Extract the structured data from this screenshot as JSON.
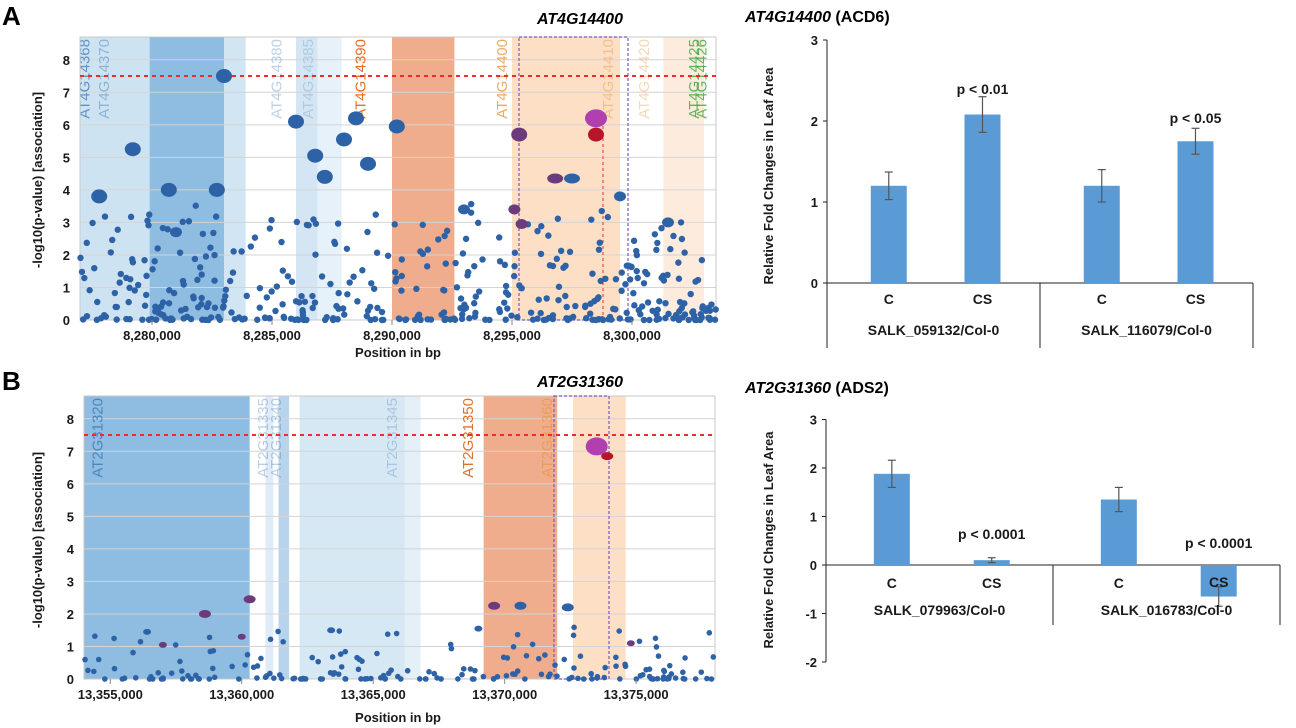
{
  "panels": {
    "A": {
      "letter": "A",
      "manhattan": {
        "title": "AT4G14400",
        "xlabel": "Position in bp",
        "ylabel": "-log10(p-value) [association]",
        "x_ticks": [
          "8,280,000",
          "8,285,000",
          "8,290,000",
          "8,295,000",
          "8,300,000"
        ],
        "y_ticks": [
          "0",
          "1",
          "2",
          "3",
          "4",
          "5",
          "6",
          "7",
          "8"
        ],
        "gene_labels": [
          "AT4G14368",
          "AT4G14370",
          "AT4G14380",
          "AT4G14385",
          "AT4G14390",
          "AT4G14400",
          "AT4G14410",
          "AT4G14420",
          "AT4G14425",
          "AT4G14426"
        ]
      },
      "bar": {
        "title_gene": "AT4G14400",
        "title_suffix": " (ACD6)",
        "ylabel": "Relative Fold Changes in Leaf Area",
        "y_ticks": [
          "0",
          "1",
          "2",
          "3"
        ],
        "groups": [
          "SALK_059132/Col-0",
          "SALK_116079/Col-0"
        ],
        "categories": [
          "C",
          "CS",
          "C",
          "CS"
        ],
        "p_labels": [
          "p < 0.01",
          "p < 0.05"
        ]
      }
    },
    "B": {
      "letter": "B",
      "manhattan": {
        "title": "AT2G31360",
        "xlabel": "Position in bp",
        "ylabel": "-log10(p-value) [association]",
        "x_ticks": [
          "13,355,000",
          "13,360,000",
          "13,365,000",
          "13,370,000",
          "13,375,000"
        ],
        "y_ticks": [
          "0",
          "1",
          "2",
          "3",
          "4",
          "5",
          "6",
          "7",
          "8"
        ],
        "gene_labels": [
          "AT2G31320",
          "AT2G31335",
          "AT2G31340",
          "AT2G31345",
          "AT2G31350",
          "AT2G31360"
        ]
      },
      "bar": {
        "title_gene": "AT2G31360",
        "title_suffix": " (ADS2)",
        "ylabel": "Relative Fold Changes in Leaf Area",
        "y_ticks": [
          "-2",
          "-1",
          "0",
          "1",
          "2",
          "3"
        ],
        "groups": [
          "SALK_079963/Col-0",
          "SALK_016783/Col-0"
        ],
        "categories": [
          "C",
          "CS",
          "C",
          "CS"
        ],
        "p_labels": [
          "p < 0.0001",
          "p < 0.0001"
        ]
      }
    }
  },
  "colors": {
    "bar": "#5b9bd5",
    "point": "#2d62a6",
    "point_purple": "#6b3b7c",
    "threshold": "#ee2b2b",
    "top_hit": "#b13fb0",
    "top_hit_red": "#b8142c",
    "grid": "#d4d4d4",
    "region_blue_dark": "#7bb0dc",
    "region_blue_light": "#c9e0f1",
    "region_orange": "#e98a5c",
    "region_orange_light": "#fbd9bb"
  },
  "chart_data": [
    {
      "type": "scatter",
      "title": "AT4G14400",
      "xlabel": "Position in bp",
      "ylabel": "-log10(p-value) [association]",
      "xlim": [
        8277000,
        8303500
      ],
      "ylim": [
        0,
        8.7
      ],
      "threshold": 7.5,
      "lead_snp": {
        "x": 8298500,
        "y": 6.2
      },
      "notable_points": [
        {
          "x": 8283000,
          "y": 7.5
        },
        {
          "x": 8286000,
          "y": 6.1
        },
        {
          "x": 8288500,
          "y": 6.2
        },
        {
          "x": 8290200,
          "y": 5.95
        },
        {
          "x": 8295300,
          "y": 5.7
        },
        {
          "x": 8298500,
          "y": 5.7
        },
        {
          "x": 8279200,
          "y": 5.25
        },
        {
          "x": 8277800,
          "y": 3.8
        },
        {
          "x": 8280700,
          "y": 4.0
        },
        {
          "x": 8282700,
          "y": 4.0
        }
      ]
    },
    {
      "type": "bar",
      "title": "AT4G14400 (ACD6)",
      "categories": [
        "C",
        "CS",
        "C",
        "CS"
      ],
      "groups": [
        "SALK_059132/Col-0",
        "SALK_116079/Col-0"
      ],
      "values": [
        1.2,
        2.08,
        1.2,
        1.75
      ],
      "errors": [
        0.17,
        0.22,
        0.2,
        0.16
      ],
      "ylabel": "Relative Fold Changes in Leaf Area",
      "ylim": [
        0,
        3
      ]
    },
    {
      "type": "scatter",
      "title": "AT2G31360",
      "xlabel": "Position in bp",
      "ylabel": "-log10(p-value) [association]",
      "xlim": [
        13354000,
        13378000
      ],
      "ylim": [
        0,
        8.7
      ],
      "threshold": 7.5,
      "lead_snp": {
        "x": 13373500,
        "y": 7.15
      },
      "notable_points": [
        {
          "x": 13373900,
          "y": 6.85
        },
        {
          "x": 13360300,
          "y": 2.45
        },
        {
          "x": 13358600,
          "y": 2.0
        },
        {
          "x": 13369600,
          "y": 2.25
        },
        {
          "x": 13370600,
          "y": 2.25
        },
        {
          "x": 13372400,
          "y": 2.2
        }
      ]
    },
    {
      "type": "bar",
      "title": "AT2G31360 (ADS2)",
      "categories": [
        "C",
        "CS",
        "C",
        "CS"
      ],
      "groups": [
        "SALK_079963/Col-0",
        "SALK_016783/Col-0"
      ],
      "values": [
        1.88,
        0.1,
        1.35,
        -0.65
      ],
      "errors": [
        0.28,
        0.05,
        0.25,
        0.2
      ],
      "ylabel": "Relative Fold Changes in Leaf Area",
      "ylim": [
        -2,
        3
      ]
    }
  ]
}
